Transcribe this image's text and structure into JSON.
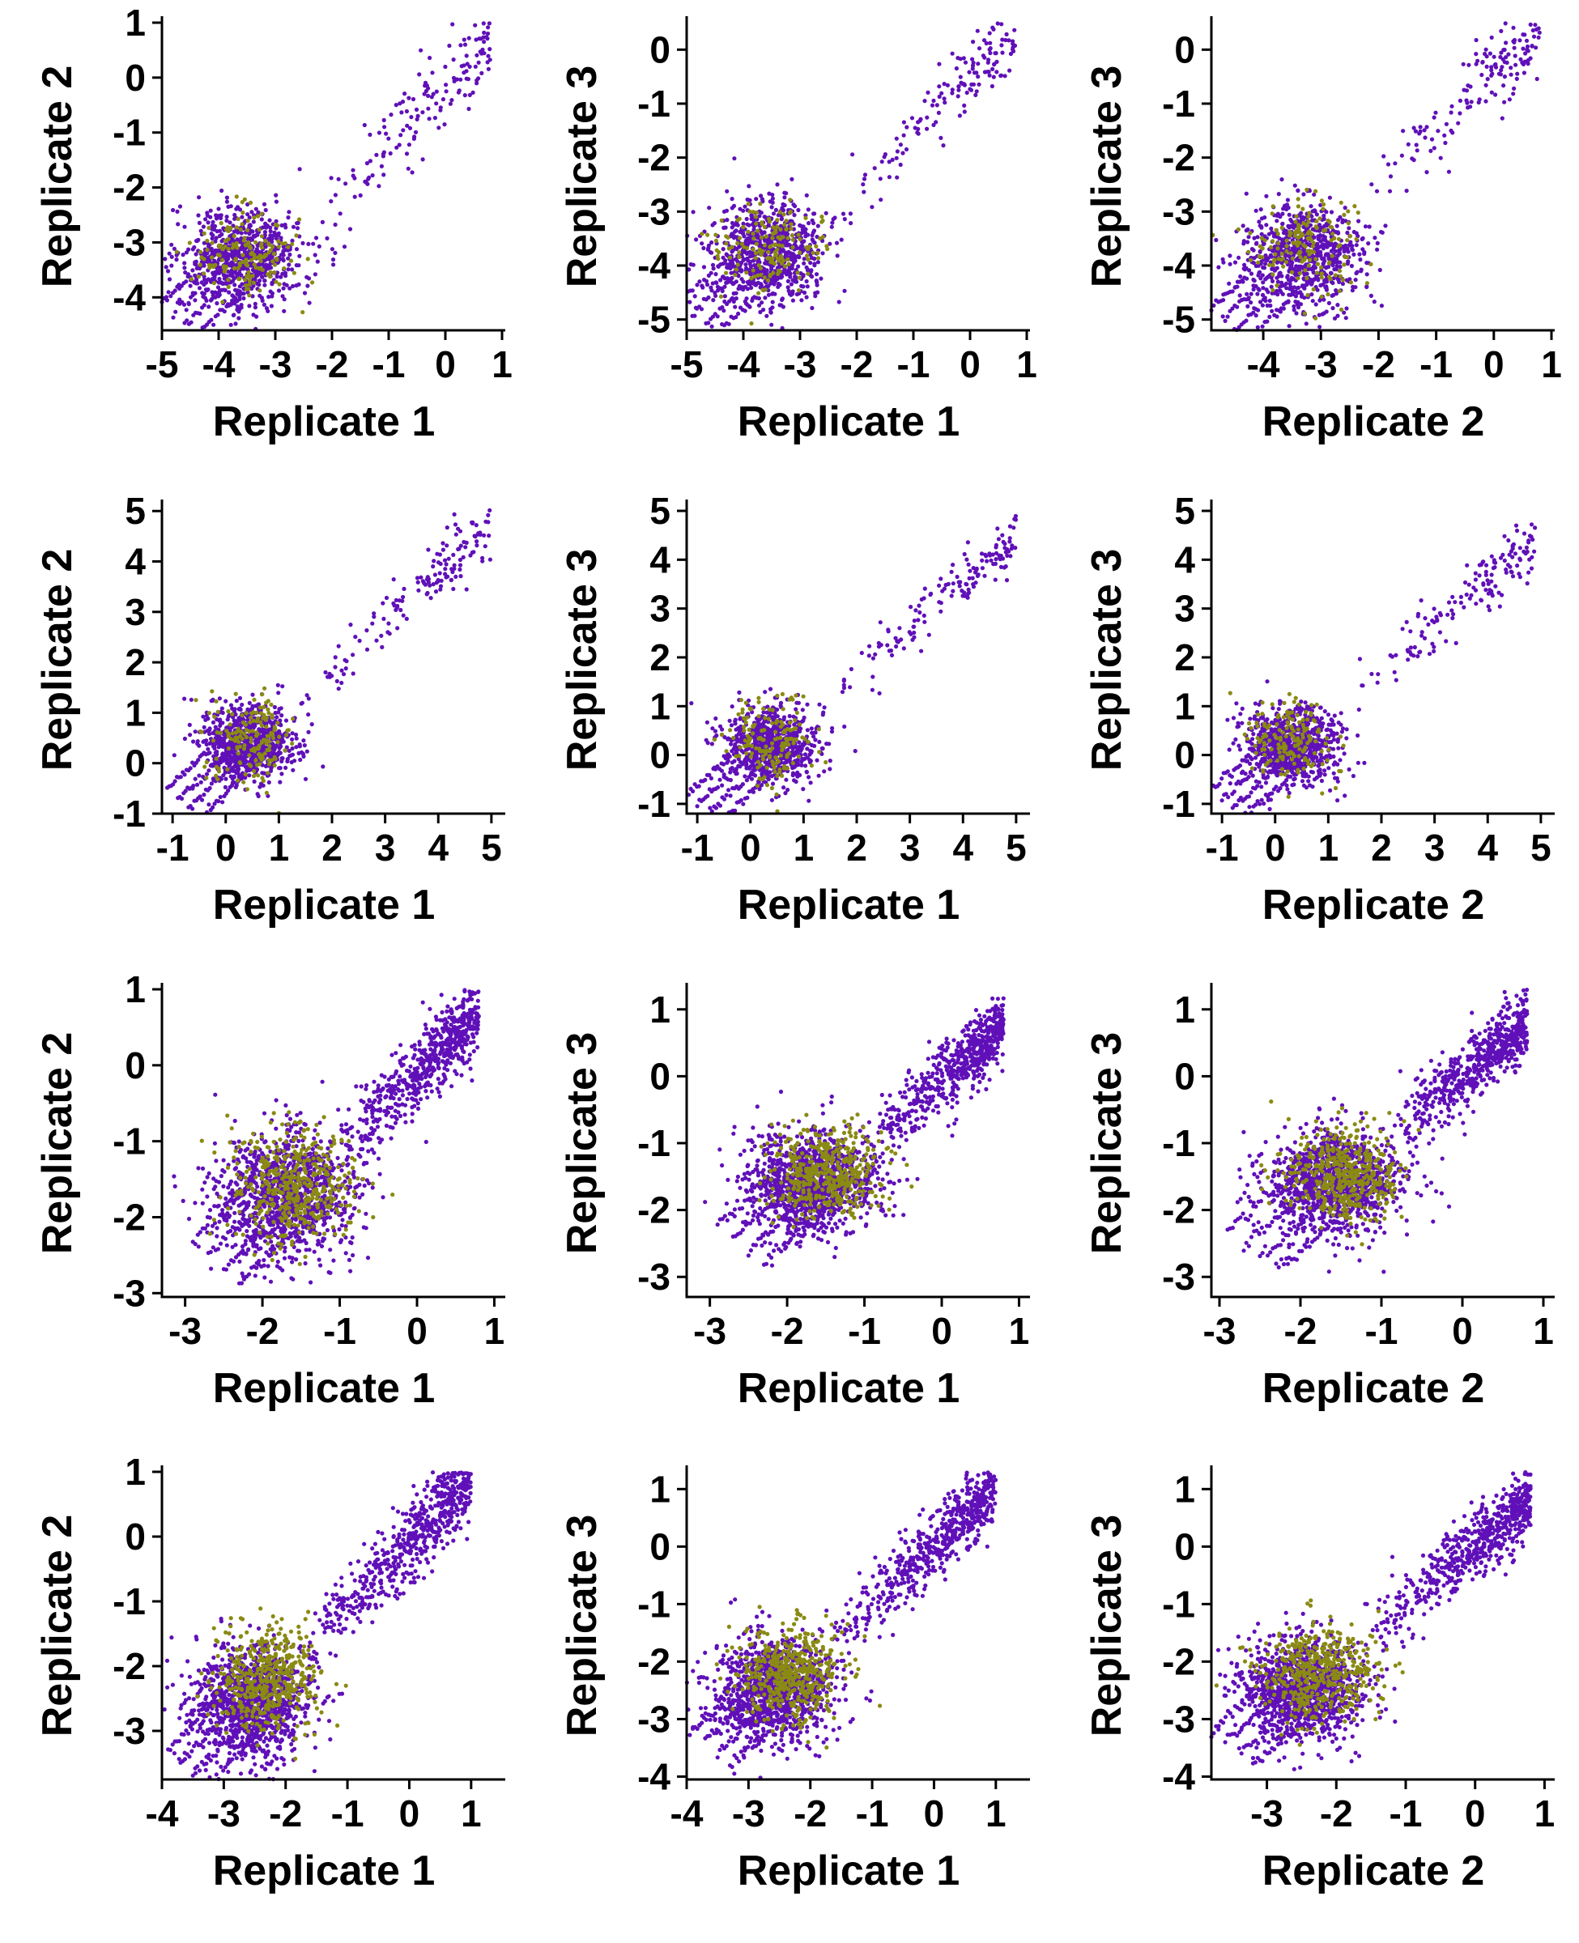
{
  "colors": {
    "background": "#ffffff",
    "axis": "#000000"
  },
  "chart_data": [
    {
      "type": "scatter",
      "panel": "row1-col1",
      "xlabel": "Replicate 1",
      "ylabel": "Replicate 2",
      "xticks": [
        -5,
        -4,
        -3,
        -2,
        -1,
        0,
        1
      ],
      "yticks": [
        -4,
        -3,
        -2,
        -1,
        0,
        1
      ],
      "xlim": [
        -5.0,
        1.0
      ],
      "ylim": [
        -4.6,
        1.0
      ],
      "series": [
        {
          "color": "#6010b8",
          "cluster": {
            "cx": -3.6,
            "cy": -3.3,
            "sx": 0.55,
            "sy": 0.45,
            "n": 650
          },
          "tail": {
            "x0": -2.6,
            "x1": 0.8,
            "slope": 1.0,
            "offset": -0.15,
            "spread": 0.35,
            "n": 150
          },
          "diag": {
            "x0": -4.7,
            "x1": -3.0,
            "n": 4
          }
        },
        {
          "color": "#8a8a14",
          "cluster": {
            "cx": -3.5,
            "cy": -3.2,
            "sx": 0.45,
            "sy": 0.38,
            "n": 160
          }
        }
      ]
    },
    {
      "type": "scatter",
      "panel": "row1-col2",
      "xlabel": "Replicate 1",
      "ylabel": "Replicate 3",
      "xticks": [
        -5,
        -4,
        -3,
        -2,
        -1,
        0,
        1
      ],
      "yticks": [
        -5,
        -4,
        -3,
        -2,
        -1,
        0
      ],
      "xlim": [
        -5.0,
        1.0
      ],
      "ylim": [
        -5.2,
        0.5
      ],
      "series": [
        {
          "color": "#6010b8",
          "cluster": {
            "cx": -3.6,
            "cy": -3.8,
            "sx": 0.55,
            "sy": 0.5,
            "n": 650
          },
          "tail": {
            "x0": -2.6,
            "x1": 0.8,
            "slope": 1.05,
            "offset": -0.55,
            "spread": 0.35,
            "n": 150
          },
          "diag": {
            "x0": -4.8,
            "x1": -3.0,
            "n": 4
          }
        },
        {
          "color": "#8a8a14",
          "cluster": {
            "cx": -3.6,
            "cy": -3.7,
            "sx": 0.45,
            "sy": 0.45,
            "n": 160
          }
        }
      ]
    },
    {
      "type": "scatter",
      "panel": "row1-col3",
      "xlabel": "Replicate 2",
      "ylabel": "Replicate 3",
      "xticks": [
        -4,
        -3,
        -2,
        -1,
        0,
        1
      ],
      "yticks": [
        -5,
        -4,
        -3,
        -2,
        -1,
        0
      ],
      "xlim": [
        -4.9,
        1.0
      ],
      "ylim": [
        -5.2,
        0.5
      ],
      "series": [
        {
          "color": "#6010b8",
          "cluster": {
            "cx": -3.3,
            "cy": -3.8,
            "sx": 0.55,
            "sy": 0.5,
            "n": 650
          },
          "tail": {
            "x0": -2.3,
            "x1": 0.8,
            "slope": 1.0,
            "offset": -0.45,
            "spread": 0.35,
            "n": 150
          },
          "diag": {
            "x0": -4.6,
            "x1": -2.8,
            "n": 4
          }
        },
        {
          "color": "#8a8a14",
          "cluster": {
            "cx": -3.3,
            "cy": -3.6,
            "sx": 0.45,
            "sy": 0.45,
            "n": 160
          }
        }
      ]
    },
    {
      "type": "scatter",
      "panel": "row2-col1",
      "xlabel": "Replicate 1",
      "ylabel": "Replicate 2",
      "xticks": [
        -1,
        0,
        1,
        2,
        3,
        4,
        5
      ],
      "yticks": [
        -1,
        0,
        1,
        2,
        3,
        4,
        5
      ],
      "xlim": [
        -1.2,
        5.2
      ],
      "ylim": [
        -1.0,
        5.1
      ],
      "series": [
        {
          "color": "#6010b8",
          "cluster": {
            "cx": 0.4,
            "cy": 0.4,
            "sx": 0.45,
            "sy": 0.38,
            "n": 650
          },
          "tail": {
            "x0": 1.2,
            "x1": 5.0,
            "slope": 0.95,
            "offset": 0.0,
            "spread": 0.3,
            "n": 150
          },
          "diag": {
            "x0": -0.8,
            "x1": 0.8,
            "n": 4
          }
        },
        {
          "color": "#8a8a14",
          "cluster": {
            "cx": 0.5,
            "cy": 0.5,
            "sx": 0.4,
            "sy": 0.42,
            "n": 160
          }
        }
      ]
    },
    {
      "type": "scatter",
      "panel": "row2-col2",
      "xlabel": "Replicate 1",
      "ylabel": "Replicate 3",
      "xticks": [
        -1,
        0,
        1,
        2,
        3,
        4,
        5
      ],
      "yticks": [
        -1,
        0,
        1,
        2,
        3,
        4,
        5
      ],
      "xlim": [
        -1.2,
        5.2
      ],
      "ylim": [
        -1.2,
        5.1
      ],
      "series": [
        {
          "color": "#6010b8",
          "cluster": {
            "cx": 0.4,
            "cy": 0.2,
            "sx": 0.45,
            "sy": 0.4,
            "n": 650
          },
          "tail": {
            "x0": 1.2,
            "x1": 5.0,
            "slope": 0.95,
            "offset": -0.2,
            "spread": 0.3,
            "n": 150
          },
          "diag": {
            "x0": -0.9,
            "x1": 0.8,
            "n": 4
          }
        },
        {
          "color": "#8a8a14",
          "cluster": {
            "cx": 0.4,
            "cy": 0.3,
            "sx": 0.4,
            "sy": 0.45,
            "n": 160
          }
        }
      ]
    },
    {
      "type": "scatter",
      "panel": "row2-col3",
      "xlabel": "Replicate 2",
      "ylabel": "Replicate 3",
      "xticks": [
        -1,
        0,
        1,
        2,
        3,
        4,
        5
      ],
      "yticks": [
        -1,
        0,
        1,
        2,
        3,
        4,
        5
      ],
      "xlim": [
        -1.2,
        5.2
      ],
      "ylim": [
        -1.2,
        5.1
      ],
      "series": [
        {
          "color": "#6010b8",
          "cluster": {
            "cx": 0.3,
            "cy": 0.2,
            "sx": 0.45,
            "sy": 0.4,
            "n": 650
          },
          "tail": {
            "x0": 1.1,
            "x1": 4.9,
            "slope": 0.95,
            "offset": -0.2,
            "spread": 0.3,
            "n": 150
          },
          "diag": {
            "x0": -0.9,
            "x1": 0.8,
            "n": 4
          }
        },
        {
          "color": "#8a8a14",
          "cluster": {
            "cx": 0.3,
            "cy": 0.3,
            "sx": 0.4,
            "sy": 0.45,
            "n": 160
          }
        }
      ]
    },
    {
      "type": "scatter",
      "panel": "row3-col1",
      "xlabel": "Replicate 1",
      "ylabel": "Replicate 2",
      "xticks": [
        -3,
        -2,
        -1,
        0,
        1
      ],
      "yticks": [
        -3,
        -2,
        -1,
        0,
        1
      ],
      "xlim": [
        -3.3,
        1.1
      ],
      "ylim": [
        -3.05,
        1.0
      ],
      "series": [
        {
          "color": "#6010b8",
          "cluster": {
            "cx": -1.7,
            "cy": -1.7,
            "sx": 0.45,
            "sy": 0.42,
            "n": 1000
          },
          "tail": {
            "x0": -1.1,
            "x1": 0.8,
            "slope": 1.0,
            "offset": -0.1,
            "spread": 0.25,
            "n": 600
          },
          "diag": {
            "x0": -2.6,
            "x1": -1.2,
            "n": 4
          }
        },
        {
          "color": "#8a8a14",
          "cluster": {
            "cx": -1.6,
            "cy": -1.55,
            "sx": 0.38,
            "sy": 0.38,
            "n": 450
          }
        }
      ]
    },
    {
      "type": "scatter",
      "panel": "row3-col2",
      "xlabel": "Replicate 1",
      "ylabel": "Replicate 3",
      "xticks": [
        -3,
        -2,
        -1,
        0,
        1
      ],
      "yticks": [
        -3,
        -2,
        -1,
        0,
        1
      ],
      "xlim": [
        -3.3,
        1.1
      ],
      "ylim": [
        -3.3,
        1.3
      ],
      "series": [
        {
          "color": "#6010b8",
          "cluster": {
            "cx": -1.7,
            "cy": -1.6,
            "sx": 0.42,
            "sy": 0.38,
            "n": 1000
          },
          "tail": {
            "x0": -1.1,
            "x1": 0.8,
            "slope": 1.0,
            "offset": -0.05,
            "spread": 0.25,
            "n": 600
          },
          "diag": {
            "x0": -2.6,
            "x1": -1.2,
            "n": 4
          }
        },
        {
          "color": "#8a8a14",
          "cluster": {
            "cx": -1.5,
            "cy": -1.45,
            "sx": 0.35,
            "sy": 0.35,
            "n": 450
          }
        }
      ]
    },
    {
      "type": "scatter",
      "panel": "row3-col3",
      "xlabel": "Replicate 2",
      "ylabel": "Replicate 3",
      "xticks": [
        -3,
        -2,
        -1,
        0,
        1
      ],
      "yticks": [
        -3,
        -2,
        -1,
        0,
        1
      ],
      "xlim": [
        -3.1,
        1.1
      ],
      "ylim": [
        -3.3,
        1.3
      ],
      "series": [
        {
          "color": "#6010b8",
          "cluster": {
            "cx": -1.6,
            "cy": -1.6,
            "sx": 0.42,
            "sy": 0.38,
            "n": 1000
          },
          "tail": {
            "x0": -1.0,
            "x1": 0.8,
            "slope": 1.0,
            "offset": 0.0,
            "spread": 0.25,
            "n": 600
          },
          "diag": {
            "x0": -2.6,
            "x1": -1.2,
            "n": 4
          }
        },
        {
          "color": "#8a8a14",
          "cluster": {
            "cx": -1.45,
            "cy": -1.45,
            "sx": 0.35,
            "sy": 0.35,
            "n": 450
          }
        }
      ]
    },
    {
      "type": "scatter",
      "panel": "row4-col1",
      "xlabel": "Replicate 1",
      "ylabel": "Replicate 2",
      "xticks": [
        -4,
        -3,
        -2,
        -1,
        0,
        1
      ],
      "yticks": [
        -3,
        -2,
        -1,
        0,
        1
      ],
      "xlim": [
        -4.0,
        1.5
      ],
      "ylim": [
        -3.75,
        1.0
      ],
      "series": [
        {
          "color": "#6010b8",
          "cluster": {
            "cx": -2.6,
            "cy": -2.6,
            "sx": 0.5,
            "sy": 0.45,
            "n": 1000
          },
          "tail": {
            "x0": -1.8,
            "x1": 1.0,
            "slope": 1.0,
            "offset": -0.1,
            "spread": 0.3,
            "n": 600
          },
          "diag": {
            "x0": -3.6,
            "x1": -2.0,
            "n": 4
          }
        },
        {
          "color": "#8a8a14",
          "cluster": {
            "cx": -2.3,
            "cy": -2.2,
            "sx": 0.42,
            "sy": 0.42,
            "n": 450
          }
        }
      ]
    },
    {
      "type": "scatter",
      "panel": "row4-col2",
      "xlabel": "Replicate 1",
      "ylabel": "Replicate 3",
      "xticks": [
        -4,
        -3,
        -2,
        -1,
        0,
        1
      ],
      "yticks": [
        -4,
        -3,
        -2,
        -1,
        0,
        1
      ],
      "xlim": [
        -4.0,
        1.5
      ],
      "ylim": [
        -4.05,
        1.3
      ],
      "series": [
        {
          "color": "#6010b8",
          "cluster": {
            "cx": -2.6,
            "cy": -2.5,
            "sx": 0.5,
            "sy": 0.45,
            "n": 1000
          },
          "tail": {
            "x0": -1.8,
            "x1": 1.0,
            "slope": 1.0,
            "offset": 0.0,
            "spread": 0.3,
            "n": 600
          },
          "diag": {
            "x0": -3.6,
            "x1": -2.0,
            "n": 4
          }
        },
        {
          "color": "#8a8a14",
          "cluster": {
            "cx": -2.3,
            "cy": -2.2,
            "sx": 0.42,
            "sy": 0.4,
            "n": 450
          }
        }
      ]
    },
    {
      "type": "scatter",
      "panel": "row4-col3",
      "xlabel": "Replicate 2",
      "ylabel": "Replicate 3",
      "xticks": [
        -3,
        -2,
        -1,
        0,
        1
      ],
      "yticks": [
        -4,
        -3,
        -2,
        -1,
        0,
        1
      ],
      "xlim": [
        -3.8,
        1.1
      ],
      "ylim": [
        -4.05,
        1.3
      ],
      "series": [
        {
          "color": "#6010b8",
          "cluster": {
            "cx": -2.5,
            "cy": -2.5,
            "sx": 0.45,
            "sy": 0.45,
            "n": 1000
          },
          "tail": {
            "x0": -1.7,
            "x1": 0.8,
            "slope": 1.0,
            "offset": 0.0,
            "spread": 0.3,
            "n": 600
          },
          "diag": {
            "x0": -3.5,
            "x1": -2.0,
            "n": 4
          }
        },
        {
          "color": "#8a8a14",
          "cluster": {
            "cx": -2.2,
            "cy": -2.2,
            "sx": 0.42,
            "sy": 0.4,
            "n": 450
          }
        }
      ]
    }
  ]
}
